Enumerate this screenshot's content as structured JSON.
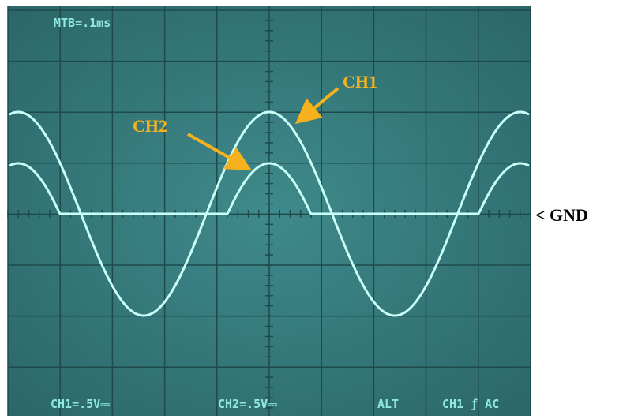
{
  "screen": {
    "timebase": "MTB=.1ms",
    "ch1_scale": "CH1=.5V⎓",
    "ch2_scale": "CH2=.5V⎓",
    "mode": "ALT",
    "trigger": "CH1 ƒ AC"
  },
  "annotations": {
    "ch1": "CH1",
    "ch2": "CH2",
    "gnd": "< GND"
  }
}
